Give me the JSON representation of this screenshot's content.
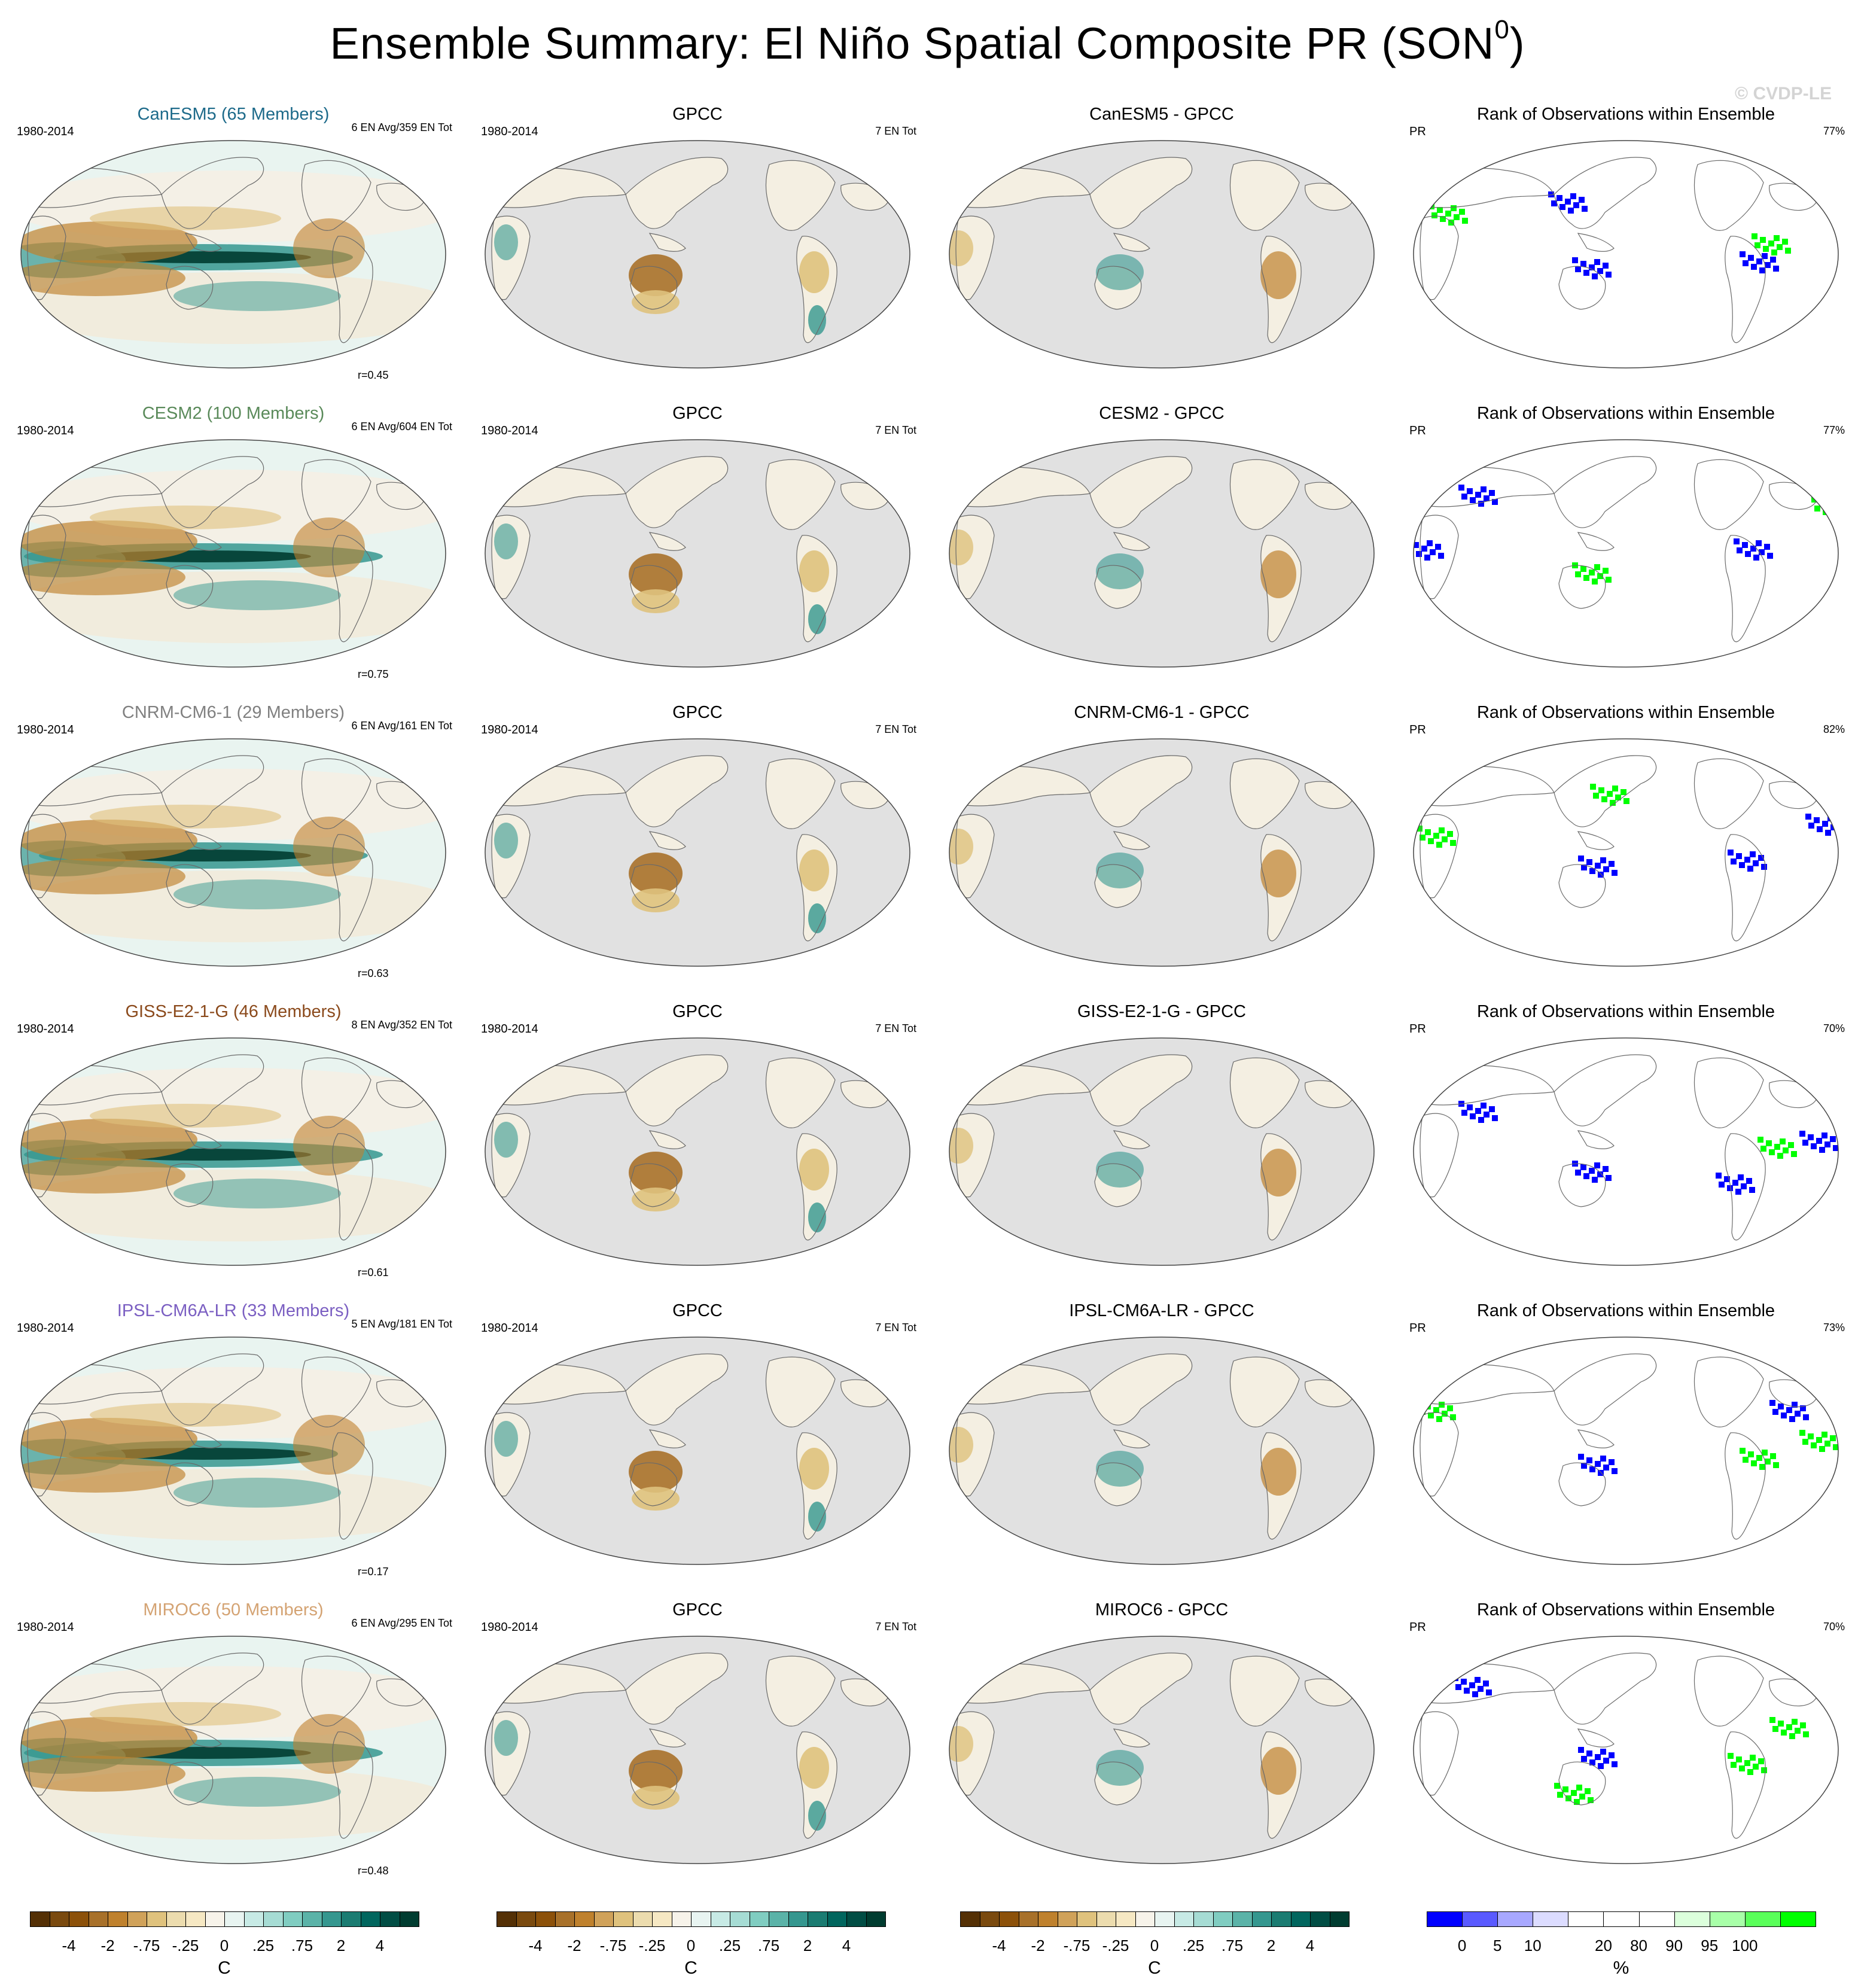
{
  "title": "Ensemble Summary: El Niño Spatial Composite PR (SON",
  "title_sup": "0",
  "title_close": ")",
  "watermark": "© CVDP-LE",
  "colors": {
    "brown_dark": "#543005",
    "tan": "#dfc27d",
    "neutral": "#f5f0e4",
    "teal": "#35978f",
    "teal_dark": "#003c30",
    "ocean_missing": "#e1e1e1",
    "rank_blue": "#0000ff",
    "rank_green": "#00ff00"
  },
  "rows": [
    {
      "model": "CanESM5 (65 Members)",
      "model_color": "#1d6a8a",
      "period": "1980-2014",
      "events": "6 EN Avg/359 EN Tot",
      "corr": "r=0.45",
      "obs_title": "GPCC",
      "obs_period": "1980-2014",
      "obs_events": "7 EN Tot",
      "diff_title": "CanESM5 - GPCC",
      "rank_title": "Rank of Observations within Ensemble",
      "rank_var": "PR",
      "rank_pct": "77%"
    },
    {
      "model": "CESM2 (100 Members)",
      "model_color": "#5a8a5a",
      "period": "1980-2014",
      "events": "6 EN Avg/604 EN Tot",
      "corr": "r=0.75",
      "obs_title": "GPCC",
      "obs_period": "1980-2014",
      "obs_events": "7 EN Tot",
      "diff_title": "CESM2 - GPCC",
      "rank_title": "Rank of Observations within Ensemble",
      "rank_var": "PR",
      "rank_pct": "77%"
    },
    {
      "model": "CNRM-CM6-1 (29 Members)",
      "model_color": "#808080",
      "period": "1980-2014",
      "events": "6 EN Avg/161 EN Tot",
      "corr": "r=0.63",
      "obs_title": "GPCC",
      "obs_period": "1980-2014",
      "obs_events": "7 EN Tot",
      "diff_title": "CNRM-CM6-1 - GPCC",
      "rank_title": "Rank of Observations within Ensemble",
      "rank_var": "PR",
      "rank_pct": "82%"
    },
    {
      "model": "GISS-E2-1-G (46 Members)",
      "model_color": "#8b4a1c",
      "period": "1980-2014",
      "events": "8 EN Avg/352 EN Tot",
      "corr": "r=0.61",
      "obs_title": "GPCC",
      "obs_period": "1980-2014",
      "obs_events": "7 EN Tot",
      "diff_title": "GISS-E2-1-G - GPCC",
      "rank_title": "Rank of Observations within Ensemble",
      "rank_var": "PR",
      "rank_pct": "70%"
    },
    {
      "model": "IPSL-CM6A-LR (33 Members)",
      "model_color": "#7b5fc2",
      "period": "1980-2014",
      "events": "5 EN Avg/181 EN Tot",
      "corr": "r=0.17",
      "obs_title": "GPCC",
      "obs_period": "1980-2014",
      "obs_events": "7 EN Tot",
      "diff_title": "IPSL-CM6A-LR - GPCC",
      "rank_title": "Rank of Observations within Ensemble",
      "rank_var": "PR",
      "rank_pct": "73%"
    },
    {
      "model": "MIROC6 (50 Members)",
      "model_color": "#d4a373",
      "period": "1980-2014",
      "events": "6 EN Avg/295 EN Tot",
      "corr": "r=0.48",
      "obs_title": "GPCC",
      "obs_period": "1980-2014",
      "obs_events": "7 EN Tot",
      "diff_title": "MIROC6 - GPCC",
      "rank_title": "Rank of Observations within Ensemble",
      "rank_var": "PR",
      "rank_pct": "70%"
    }
  ],
  "colorbars": [
    {
      "unit": "C",
      "ticks": [
        "-4",
        "-2",
        "-.75",
        "-.25",
        "0",
        ".25",
        ".75",
        "2",
        "4"
      ],
      "colors": [
        "#543005",
        "#7a4a0f",
        "#8c510a",
        "#a8712a",
        "#bf812d",
        "#d0a25a",
        "#dfc27d",
        "#ecdcae",
        "#f6e8c3",
        "#f7f3ea",
        "#e8f4f1",
        "#c7eae5",
        "#a6dcd4",
        "#80cdc1",
        "#5bb3a8",
        "#35978f",
        "#1b7c72",
        "#01665e",
        "#014d44",
        "#003c30"
      ]
    },
    {
      "unit": "C",
      "ticks": [
        "-4",
        "-2",
        "-.75",
        "-.25",
        "0",
        ".25",
        ".75",
        "2",
        "4"
      ],
      "colors": [
        "#543005",
        "#7a4a0f",
        "#8c510a",
        "#a8712a",
        "#bf812d",
        "#d0a25a",
        "#dfc27d",
        "#ecdcae",
        "#f6e8c3",
        "#f7f3ea",
        "#e8f4f1",
        "#c7eae5",
        "#a6dcd4",
        "#80cdc1",
        "#5bb3a8",
        "#35978f",
        "#1b7c72",
        "#01665e",
        "#014d44",
        "#003c30"
      ]
    },
    {
      "unit": "C",
      "ticks": [
        "-4",
        "-2",
        "-.75",
        "-.25",
        "0",
        ".25",
        ".75",
        "2",
        "4"
      ],
      "colors": [
        "#543005",
        "#7a4a0f",
        "#8c510a",
        "#a8712a",
        "#bf812d",
        "#d0a25a",
        "#dfc27d",
        "#ecdcae",
        "#f6e8c3",
        "#f7f3ea",
        "#e8f4f1",
        "#c7eae5",
        "#a6dcd4",
        "#80cdc1",
        "#5bb3a8",
        "#35978f",
        "#1b7c72",
        "#01665e",
        "#014d44",
        "#003c30"
      ]
    },
    {
      "unit": "%",
      "ticks": [
        "0",
        "5",
        "10",
        "20",
        "80",
        "90",
        "95",
        "100"
      ],
      "colors": [
        "#0000ff",
        "#5a5aff",
        "#a8a8ff",
        "#dcdcff",
        "#ffffff",
        "#ffffff",
        "#ffffff",
        "#dcffdc",
        "#a8ffa8",
        "#5aff5a",
        "#00ff00"
      ]
    }
  ],
  "chart_data": [
    {
      "type": "heatmap",
      "title": "Ensemble Summary: El Niño Spatial Composite PR (SON0)",
      "grid": "4 columns x 6 rows of Robinson-projection global maps, Pacific-centered",
      "columns": [
        "Model ensemble mean composite",
        "GPCC observations",
        "Model - GPCC difference",
        "Rank of Observations within Ensemble"
      ],
      "rows": [
        "CanESM5",
        "CESM2",
        "CNRM-CM6-1",
        "GISS-E2-1-G",
        "IPSL-CM6A-LR",
        "MIROC6"
      ],
      "pattern_correlations": {
        "CanESM5": 0.45,
        "CESM2": 0.75,
        "CNRM-CM6-1": 0.63,
        "GISS-E2-1-G": 0.61,
        "IPSL-CM6A-LR": 0.17,
        "MIROC6": 0.48
      },
      "rank_percent": {
        "CanESM5": 77,
        "CESM2": 77,
        "CNRM-CM6-1": 82,
        "GISS-E2-1-G": 70,
        "IPSL-CM6A-LR": 73,
        "MIROC6": 70
      },
      "en_events": {
        "CanESM5": [
          6,
          359
        ],
        "CESM2": [
          6,
          604
        ],
        "CNRM-CM6-1": [
          6,
          161
        ],
        "GISS-E2-1-G": [
          8,
          352
        ],
        "IPSL-CM6A-LR": [
          5,
          181
        ],
        "MIROC6": [
          6,
          295
        ]
      },
      "obs_events": 7,
      "colorbar_levels_C": [
        -4,
        -2,
        -0.75,
        -0.25,
        0,
        0.25,
        0.75,
        2,
        4
      ],
      "colorbar_levels_pct": [
        0,
        5,
        10,
        20,
        80,
        90,
        95,
        100
      ]
    }
  ]
}
